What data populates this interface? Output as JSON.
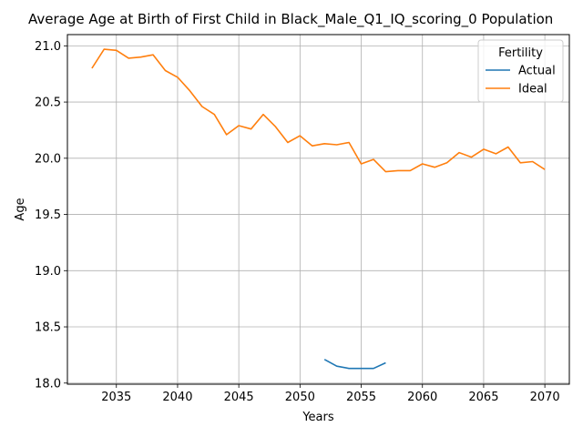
{
  "chart_data": {
    "type": "line",
    "title": "Average Age at Birth of First Child in Black_Male_Q1_IQ_scoring_0 Population",
    "xlabel": "Years",
    "ylabel": "Age",
    "xlim": [
      2031,
      2072
    ],
    "ylim": [
      17.99,
      21.1
    ],
    "xticks": [
      2035,
      2040,
      2045,
      2050,
      2055,
      2060,
      2065,
      2070
    ],
    "yticks": [
      18.0,
      18.5,
      19.0,
      19.5,
      20.0,
      20.5,
      21.0
    ],
    "ytick_labels": [
      "18.0",
      "18.5",
      "19.0",
      "19.5",
      "20.0",
      "20.5",
      "21.0"
    ],
    "grid": true,
    "legend": {
      "title": "Fertility",
      "placement": "top-right"
    },
    "series": [
      {
        "name": "Actual",
        "color": "#1f77b4",
        "x": [
          2052,
          2053,
          2054,
          2055,
          2056,
          2057
        ],
        "values": [
          18.21,
          18.15,
          18.13,
          18.13,
          18.13,
          18.18
        ]
      },
      {
        "name": "Ideal",
        "color": "#ff7f0e",
        "x": [
          2033,
          2034,
          2035,
          2036,
          2037,
          2038,
          2039,
          2040,
          2041,
          2042,
          2043,
          2044,
          2045,
          2046,
          2047,
          2048,
          2049,
          2050,
          2051,
          2052,
          2053,
          2054,
          2055,
          2056,
          2057,
          2058,
          2059,
          2060,
          2061,
          2062,
          2063,
          2064,
          2065,
          2066,
          2067,
          2068,
          2069,
          2070
        ],
        "values": [
          20.8,
          20.97,
          20.96,
          20.89,
          20.9,
          20.92,
          20.78,
          20.72,
          20.6,
          20.46,
          20.39,
          20.21,
          20.29,
          20.26,
          20.39,
          20.28,
          20.14,
          20.2,
          20.11,
          20.13,
          20.12,
          20.14,
          19.95,
          19.99,
          19.88,
          19.89,
          19.89,
          19.95,
          19.92,
          19.96,
          20.05,
          20.01,
          20.08,
          20.04,
          20.1,
          19.96,
          19.97,
          19.9
        ]
      }
    ]
  }
}
